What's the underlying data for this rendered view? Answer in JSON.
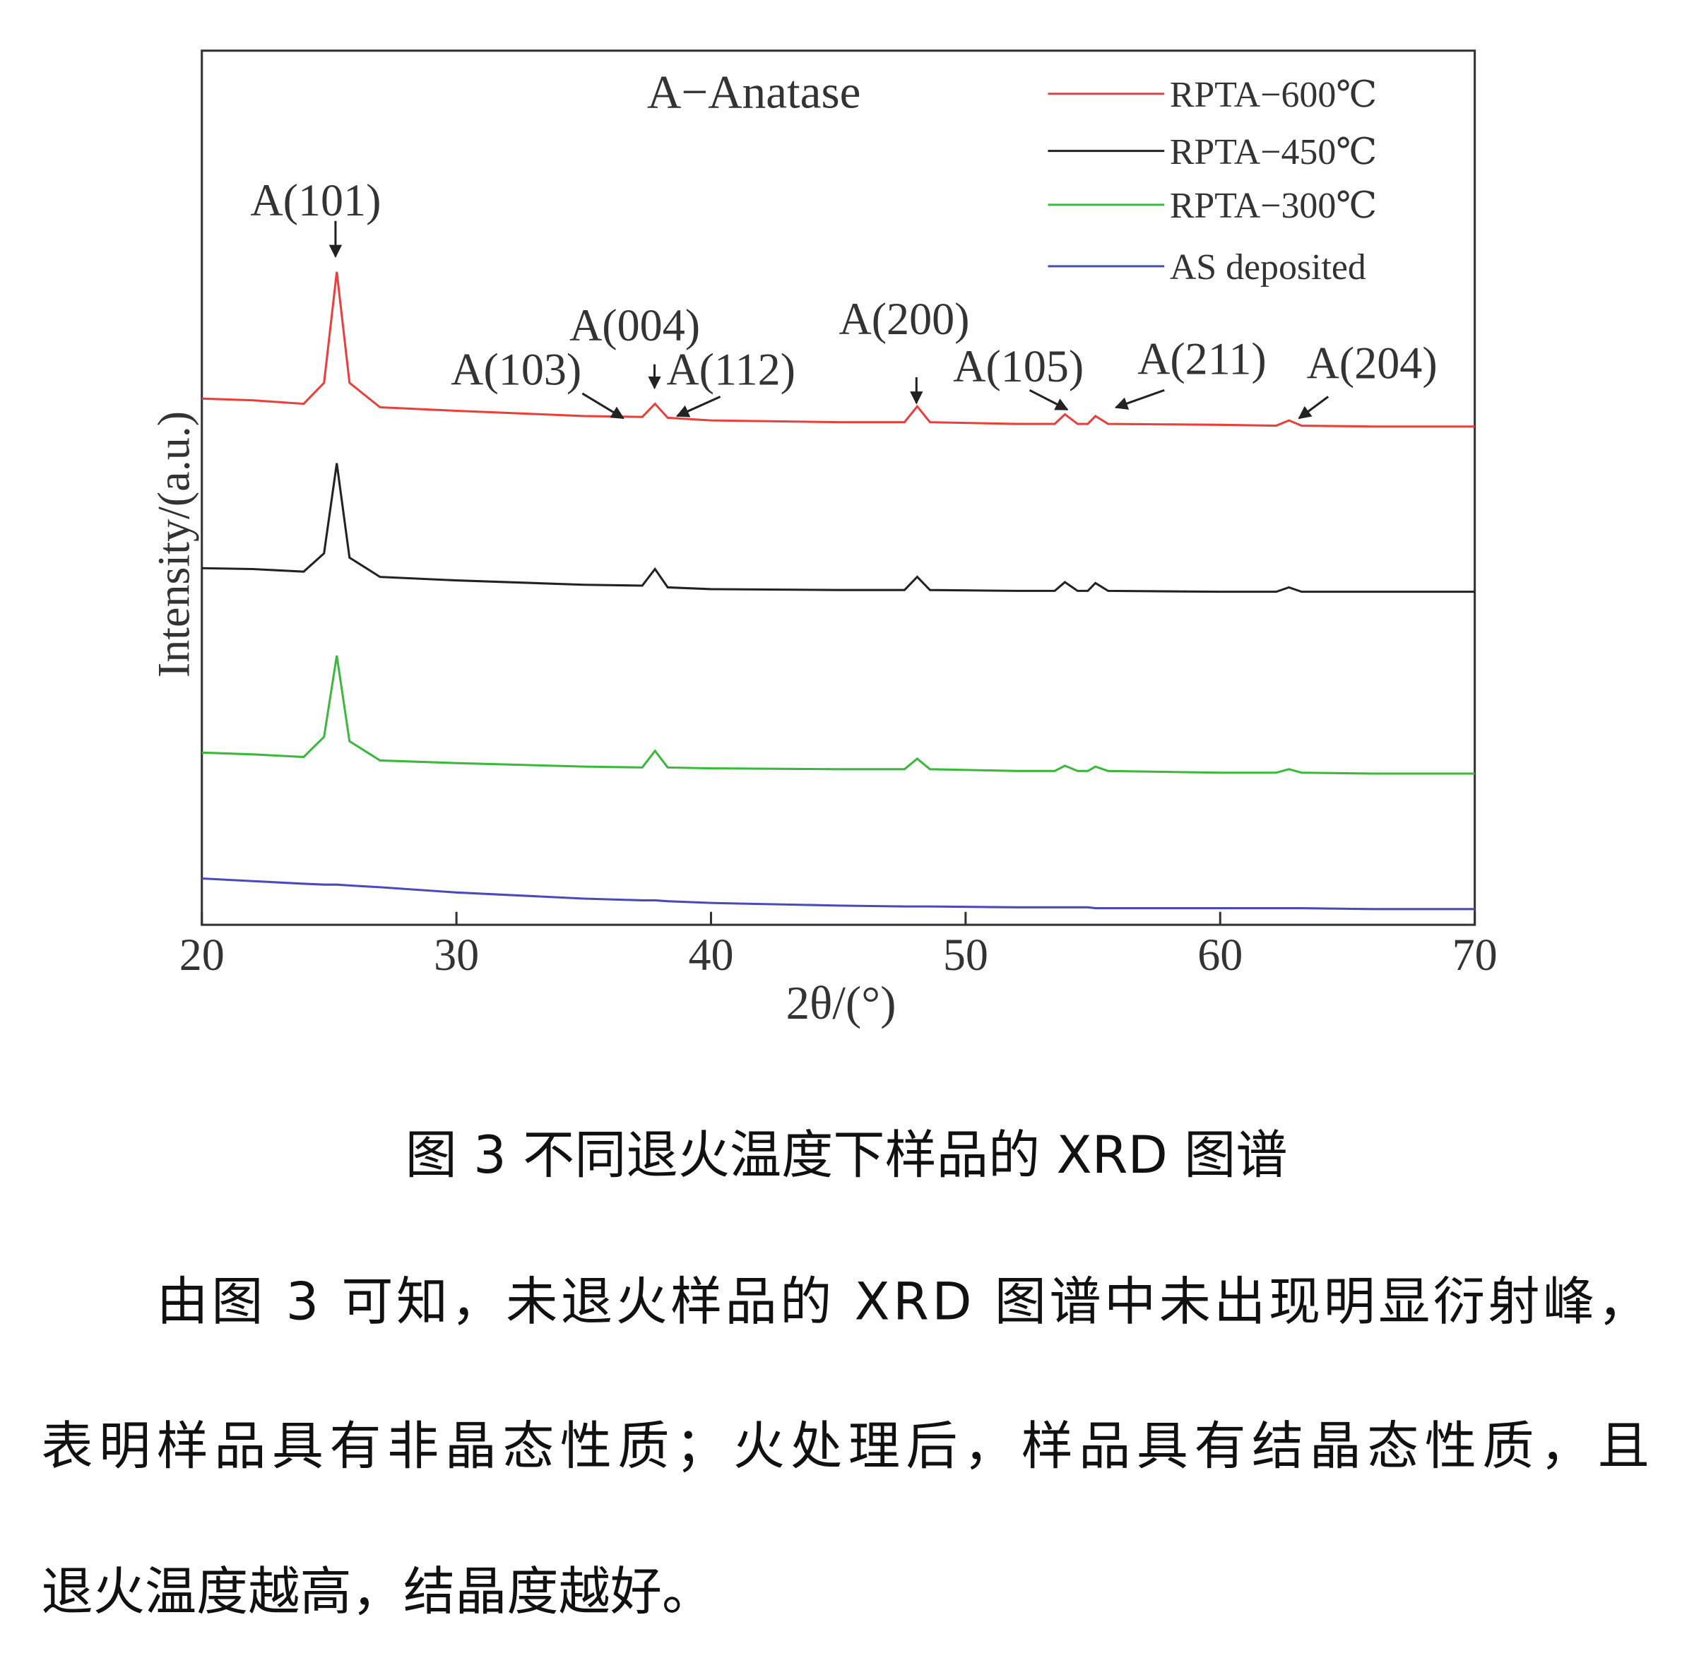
{
  "chart_data": {
    "type": "line",
    "x_label": "2θ/(°)",
    "y_label": "Intensity/(a.u.)",
    "xlim": [
      20,
      70
    ],
    "xticks": [
      20,
      30,
      40,
      50,
      60,
      70
    ],
    "ylim": [
      0,
      100
    ],
    "legend": "top-right",
    "annotations": [
      "A−Anatase",
      "A(101)",
      "A(004)",
      "A(103)",
      "A(112)",
      "A(200)",
      "A(105)",
      "A(211)",
      "A(204)"
    ],
    "x": [
      20,
      22,
      24,
      24.8,
      25.3,
      25.8,
      27,
      30,
      35,
      37.3,
      37.8,
      38.3,
      40,
      45,
      47.6,
      48.1,
      48.6,
      52,
      53.5,
      53.9,
      54.4,
      54.8,
      55.1,
      55.6,
      60,
      62.2,
      62.7,
      63.2,
      66,
      70
    ],
    "series": [
      {
        "name": "RPTA−600℃",
        "color": "#e8403c",
        "values": [
          60.2,
          60.0,
          59.6,
          62,
          74.7,
          62,
          59.2,
          58.8,
          58.2,
          58.1,
          59.6,
          58.0,
          57.7,
          57.5,
          57.5,
          59.3,
          57.5,
          57.3,
          57.3,
          58.4,
          57.3,
          57.3,
          58.2,
          57.3,
          57.2,
          57.1,
          57.7,
          57.1,
          57.0,
          57.0
        ]
      },
      {
        "name": "RPTA−450℃",
        "color": "#222222",
        "values": [
          40.8,
          40.7,
          40.4,
          42.5,
          52.8,
          42,
          39.8,
          39.4,
          38.9,
          38.8,
          40.7,
          38.6,
          38.4,
          38.3,
          38.3,
          39.8,
          38.3,
          38.2,
          38.2,
          39.2,
          38.2,
          38.2,
          39.1,
          38.2,
          38.1,
          38.1,
          38.6,
          38.1,
          38.1,
          38.1
        ]
      },
      {
        "name": "RPTA−300℃",
        "color": "#3cb83c",
        "values": [
          19.7,
          19.5,
          19.2,
          21.5,
          30.8,
          21,
          18.8,
          18.5,
          18.1,
          18.0,
          19.9,
          18.0,
          17.9,
          17.8,
          17.8,
          19.0,
          17.8,
          17.6,
          17.6,
          18.2,
          17.6,
          17.6,
          18.1,
          17.6,
          17.4,
          17.4,
          17.8,
          17.4,
          17.3,
          17.3
        ]
      },
      {
        "name": "AS deposited",
        "color": "#4a4ab8",
        "values": [
          5.3,
          5.0,
          4.7,
          4.6,
          4.6,
          4.5,
          4.3,
          3.7,
          3.0,
          2.8,
          2.8,
          2.7,
          2.5,
          2.2,
          2.1,
          2.1,
          2.1,
          2.0,
          2.0,
          2.0,
          2.0,
          2.0,
          1.9,
          1.9,
          1.9,
          1.9,
          1.9,
          1.9,
          1.8,
          1.8
        ]
      }
    ]
  },
  "caption": "图 3 不同退火温度下样品的 XRD 图谱",
  "paragraph": [
    "由图 3 可知，未退火样品的 XRD 图谱中未出现明显衍射峰，",
    "表明样品具有非晶态性质；火处理后，样品具有结晶态性质，且",
    "退火温度越高，结晶度越好。"
  ]
}
